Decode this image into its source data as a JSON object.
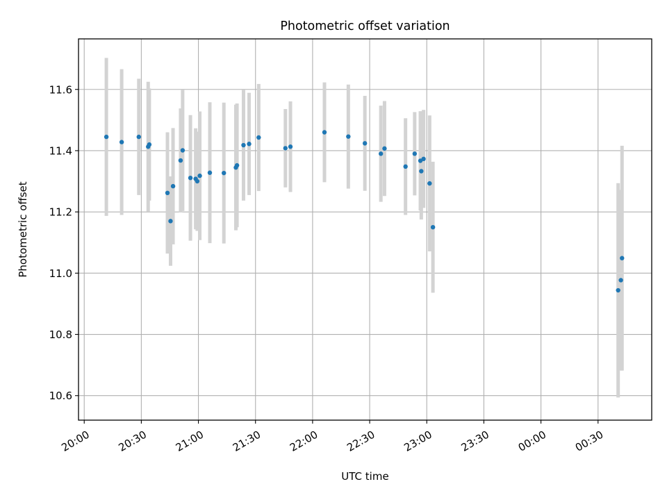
{
  "chart_data": {
    "type": "scatter",
    "title": "Photometric offset variation",
    "xlabel": "UTC time",
    "ylabel": "Photometric offset",
    "x_unit": "UTC time (hours, day-relative; values ≥ 24 are after midnight)",
    "xlim": [
      19.95,
      24.97
    ],
    "ylim": [
      10.52,
      11.765
    ],
    "grid": true,
    "x_ticks": [
      {
        "value": 20.0,
        "label": "20:00"
      },
      {
        "value": 20.5,
        "label": "20:30"
      },
      {
        "value": 21.0,
        "label": "21:00"
      },
      {
        "value": 21.5,
        "label": "21:30"
      },
      {
        "value": 22.0,
        "label": "22:00"
      },
      {
        "value": 22.5,
        "label": "22:30"
      },
      {
        "value": 23.0,
        "label": "23:00"
      },
      {
        "value": 23.5,
        "label": "23:30"
      },
      {
        "value": 24.0,
        "label": "00:00"
      },
      {
        "value": 24.5,
        "label": "00:30"
      }
    ],
    "y_ticks": [
      {
        "value": 10.6,
        "label": "10.6"
      },
      {
        "value": 10.8,
        "label": "10.8"
      },
      {
        "value": 11.0,
        "label": "11.0"
      },
      {
        "value": 11.2,
        "label": "11.2"
      },
      {
        "value": 11.4,
        "label": "11.4"
      },
      {
        "value": 11.6,
        "label": "11.6"
      }
    ],
    "point_color": "#1f77b4",
    "errorbar_color": "#d3d3d3",
    "points": [
      {
        "x": 20.194,
        "y": 11.445,
        "err": 0.258
      },
      {
        "x": 20.328,
        "y": 11.428,
        "err": 0.238
      },
      {
        "x": 20.478,
        "y": 11.445,
        "err": 0.19
      },
      {
        "x": 20.56,
        "y": 11.413,
        "err": 0.212
      },
      {
        "x": 20.57,
        "y": 11.42,
        "err": 0.183
      },
      {
        "x": 20.729,
        "y": 11.262,
        "err": 0.198
      },
      {
        "x": 20.756,
        "y": 11.17,
        "err": 0.146
      },
      {
        "x": 20.778,
        "y": 11.284,
        "err": 0.19
      },
      {
        "x": 20.844,
        "y": 11.368,
        "err": 0.17
      },
      {
        "x": 20.862,
        "y": 11.401,
        "err": 0.198
      },
      {
        "x": 20.93,
        "y": 11.311,
        "err": 0.205
      },
      {
        "x": 20.976,
        "y": 11.308,
        "err": 0.165
      },
      {
        "x": 20.99,
        "y": 11.3,
        "err": 0.162
      },
      {
        "x": 21.012,
        "y": 11.318,
        "err": 0.21
      },
      {
        "x": 21.1,
        "y": 11.328,
        "err": 0.23
      },
      {
        "x": 21.223,
        "y": 11.327,
        "err": 0.23
      },
      {
        "x": 21.328,
        "y": 11.345,
        "err": 0.205
      },
      {
        "x": 21.338,
        "y": 11.352,
        "err": 0.202
      },
      {
        "x": 21.395,
        "y": 11.418,
        "err": 0.181
      },
      {
        "x": 21.444,
        "y": 11.422,
        "err": 0.167
      },
      {
        "x": 21.528,
        "y": 11.443,
        "err": 0.175
      },
      {
        "x": 21.762,
        "y": 11.408,
        "err": 0.128
      },
      {
        "x": 21.806,
        "y": 11.413,
        "err": 0.148
      },
      {
        "x": 22.104,
        "y": 11.46,
        "err": 0.163
      },
      {
        "x": 22.313,
        "y": 11.446,
        "err": 0.17
      },
      {
        "x": 22.458,
        "y": 11.424,
        "err": 0.155
      },
      {
        "x": 22.598,
        "y": 11.39,
        "err": 0.157
      },
      {
        "x": 22.63,
        "y": 11.407,
        "err": 0.155
      },
      {
        "x": 22.814,
        "y": 11.348,
        "err": 0.158
      },
      {
        "x": 22.894,
        "y": 11.39,
        "err": 0.136
      },
      {
        "x": 22.944,
        "y": 11.367,
        "err": 0.162
      },
      {
        "x": 22.952,
        "y": 11.333,
        "err": 0.158
      },
      {
        "x": 22.972,
        "y": 11.373,
        "err": 0.16
      },
      {
        "x": 23.025,
        "y": 11.293,
        "err": 0.222
      },
      {
        "x": 23.054,
        "y": 11.15,
        "err": 0.214
      },
      {
        "x": 24.676,
        "y": 10.944,
        "err": 0.35
      },
      {
        "x": 24.7,
        "y": 10.977,
        "err": 0.295
      },
      {
        "x": 24.71,
        "y": 11.049,
        "err": 0.367
      }
    ]
  }
}
